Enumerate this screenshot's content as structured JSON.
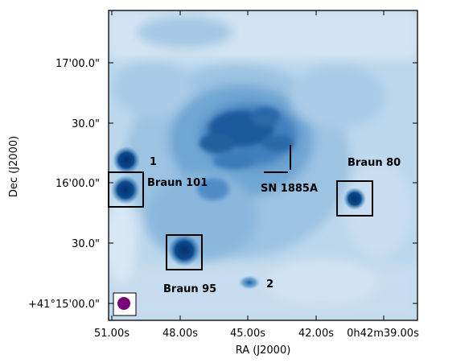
{
  "axes": {
    "xlabel": "RA (J2000)",
    "ylabel": "Dec (J2000)",
    "xticks": [
      "51.00s",
      "48.00s",
      "45.00s",
      "42.00s",
      "0h42m39.00s"
    ],
    "yticks": [
      "17'00.0\"",
      "30.0\"",
      "16'00.0\"",
      "30.0\"",
      "+41°15'00.0\""
    ]
  },
  "annotations": {
    "src_1": "1",
    "src_2": "2",
    "braun_101": "Braun 101",
    "braun_95": "Braun 95",
    "braun_80": "Braun 80",
    "sn": "SN 1885A"
  },
  "colors": {
    "colormap": "Blues",
    "beam": "#7a007a",
    "boxes": "#000000"
  }
}
